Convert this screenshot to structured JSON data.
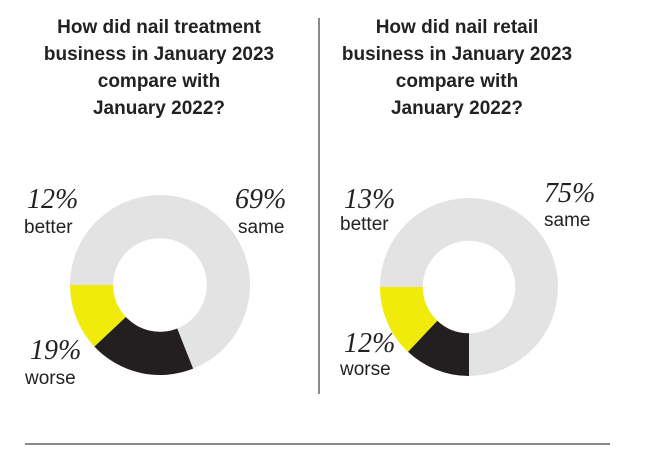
{
  "colors": {
    "better": "#f0eb0a",
    "worse": "#231f20",
    "same": "#e3e3e3"
  },
  "chart_data": [
    {
      "type": "pie",
      "title": [
        "How did nail treatment",
        "business in January 2023",
        "compare with",
        "January 2022?"
      ],
      "labels": {
        "better": "better",
        "worse": "worse",
        "same": "same"
      },
      "pct_text": {
        "better": "12%",
        "worse": "19%",
        "same": "69%"
      },
      "values": {
        "better": 12,
        "worse": 19,
        "same": 69
      }
    },
    {
      "type": "pie",
      "title": [
        "How did nail retail",
        "business in January 2023",
        "compare with",
        "January 2022?"
      ],
      "labels": {
        "better": "better",
        "worse": "worse",
        "same": "same"
      },
      "pct_text": {
        "better": "13%",
        "worse": "12%",
        "same": "75%"
      },
      "values": {
        "better": 13,
        "worse": 12,
        "same": 75
      }
    }
  ]
}
